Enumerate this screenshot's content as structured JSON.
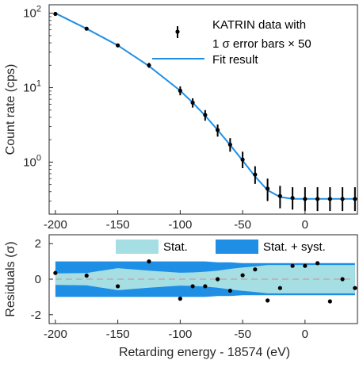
{
  "chart_data": [
    {
      "type": "scatter",
      "ylabel": "Count rate (cps)",
      "yscale": "log",
      "xlim": [
        -205,
        42
      ],
      "ylim": [
        0.2,
        130
      ],
      "xticks": [
        -200,
        -150,
        -100,
        -50,
        0
      ],
      "xtick_labels": [
        "-200",
        "-150",
        "-100",
        "-50",
        "0"
      ],
      "yticks": [
        1,
        10,
        100
      ],
      "ytick_labels": [
        {
          "base": "10",
          "exp": "0"
        },
        {
          "base": "10",
          "exp": "1"
        },
        {
          "base": "10",
          "exp": "2"
        }
      ],
      "legend": {
        "position": "top-right",
        "data_label_lines": [
          "KATRIN data with",
          "1 σ error bars × 50"
        ],
        "fit_label": "Fit result"
      },
      "colors": {
        "fit": "#1f8fe5",
        "data": "#000000",
        "axis": "#262626"
      },
      "series": [
        {
          "name": "KATRIN data with 1 σ error bars × 50",
          "x": [
            -200,
            -175,
            -150,
            -125,
            -100,
            -90,
            -80,
            -70,
            -60,
            -50,
            -40,
            -30,
            -20,
            -10,
            0,
            10,
            20,
            30,
            40
          ],
          "y": [
            98,
            62,
            37,
            20,
            9.1,
            6.3,
            4.3,
            2.7,
            1.72,
            1.08,
            0.68,
            0.44,
            0.35,
            0.33,
            0.32,
            0.32,
            0.32,
            0.32,
            0.32
          ],
          "err_low": [
            95,
            60,
            35,
            18.5,
            7.9,
            5.4,
            3.6,
            2.2,
            1.38,
            0.83,
            0.51,
            0.3,
            0.24,
            0.23,
            0.22,
            0.22,
            0.22,
            0.22,
            0.22
          ],
          "err_high": [
            101,
            64,
            39,
            21.5,
            10.4,
            7.2,
            5.0,
            3.2,
            2.1,
            1.38,
            0.88,
            0.6,
            0.48,
            0.46,
            0.46,
            0.46,
            0.46,
            0.46,
            0.46
          ]
        },
        {
          "name": "Fit result",
          "x": [
            -200,
            -175,
            -150,
            -125,
            -100,
            -90,
            -80,
            -70,
            -60,
            -50,
            -40,
            -30,
            -20,
            -10,
            0,
            10,
            20,
            30,
            40
          ],
          "y": [
            100,
            62,
            37,
            19.5,
            9.1,
            6.3,
            4.2,
            2.7,
            1.7,
            1.05,
            0.64,
            0.42,
            0.34,
            0.32,
            0.32,
            0.32,
            0.32,
            0.32,
            0.32
          ]
        }
      ]
    },
    {
      "type": "scatter",
      "xlabel": "Retarding energy - 18574 (eV)",
      "ylabel": "Residuals (σ)",
      "xlim": [
        -205,
        42
      ],
      "ylim": [
        -2.5,
        2.5
      ],
      "xticks": [
        -200,
        -150,
        -100,
        -50,
        0
      ],
      "xtick_labels": [
        "-200",
        "-150",
        "-100",
        "-50",
        "0"
      ],
      "yticks": [
        -2,
        0,
        2
      ],
      "ytick_labels": [
        "-2",
        "0",
        "2"
      ],
      "legend": {
        "position": "top",
        "stat_label": "Stat.",
        "syst_label": "Stat. + syst."
      },
      "colors": {
        "stat": "#a5dfe3",
        "syst": "#1f8fe5",
        "zero_line": "#c4a8a8",
        "points": "#000000"
      },
      "bands": {
        "x": [
          -200,
          -175,
          -150,
          -125,
          -100,
          -90,
          -80,
          -70,
          -60,
          -50,
          -40,
          -30,
          -20,
          -10,
          0,
          10,
          20,
          30,
          40
        ],
        "stat": [
          0.32,
          0.35,
          0.62,
          0.48,
          0.36,
          0.38,
          0.42,
          0.48,
          0.58,
          0.66,
          0.72,
          0.8,
          0.8,
          0.8,
          0.8,
          0.8,
          0.8,
          0.8,
          0.8
        ],
        "syst": [
          1.0,
          1.0,
          1.0,
          1.0,
          1.0,
          1.0,
          1.0,
          0.95,
          0.95,
          0.9,
          0.9,
          0.9,
          0.9,
          0.9,
          0.9,
          0.9,
          0.9,
          0.9,
          0.9
        ]
      },
      "series": [
        {
          "name": "Residuals",
          "x": [
            -200,
            -175,
            -150,
            -125,
            -100,
            -90,
            -80,
            -70,
            -60,
            -50,
            -40,
            -30,
            -20,
            -10,
            0,
            10,
            20,
            30,
            40
          ],
          "y": [
            0.35,
            0.2,
            -0.4,
            1.0,
            -1.1,
            -0.4,
            -0.4,
            0.0,
            -0.65,
            0.22,
            0.55,
            -1.2,
            -0.5,
            0.75,
            0.75,
            0.9,
            -1.25,
            0.0,
            -0.5
          ]
        }
      ]
    }
  ]
}
